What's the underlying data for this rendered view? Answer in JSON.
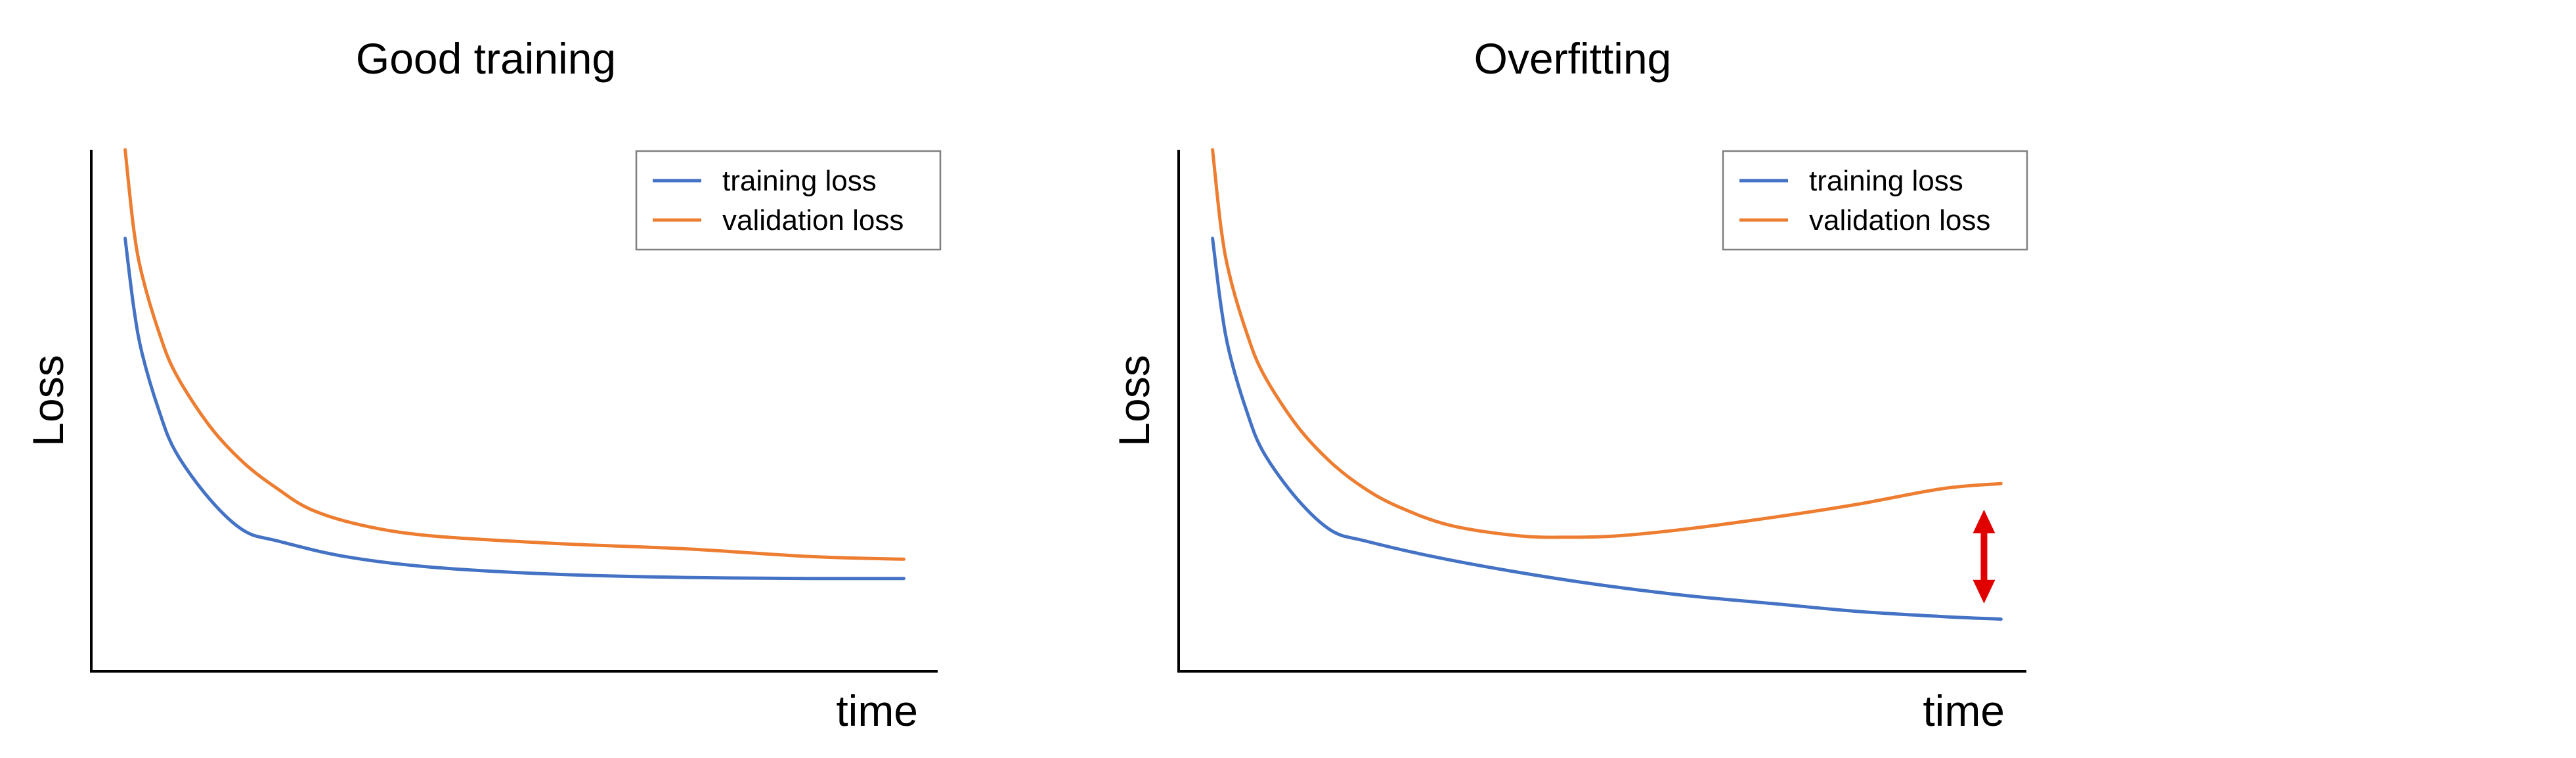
{
  "colors": {
    "training": "#4472C4",
    "validation": "#ED7D31",
    "gap_arrow": "#E00000",
    "axis": "#000000",
    "legend_border": "#7F7F7F"
  },
  "chart_data": [
    {
      "type": "line",
      "title": "Good training",
      "xlabel": "time",
      "ylabel": "Loss",
      "axis_ticks": false,
      "grid": false,
      "legend_position": "top-right",
      "xlim": [
        0,
        100
      ],
      "ylim": [
        0,
        100
      ],
      "series": [
        {
          "name": "training loss",
          "color_key": "training",
          "points": [
            [
              4,
              83
            ],
            [
              5,
              70
            ],
            [
              6,
              61
            ],
            [
              8,
              50
            ],
            [
              10,
              42
            ],
            [
              14,
              33
            ],
            [
              18,
              27
            ],
            [
              22,
              25
            ],
            [
              30,
              22
            ],
            [
              40,
              20
            ],
            [
              55,
              18.6
            ],
            [
              70,
              18
            ],
            [
              85,
              17.8
            ],
            [
              96,
              17.8
            ]
          ]
        },
        {
          "name": "validation loss",
          "color_key": "validation",
          "points": [
            [
              4,
              100
            ],
            [
              5,
              85
            ],
            [
              6,
              76
            ],
            [
              8,
              65
            ],
            [
              10,
              57
            ],
            [
              14,
              47
            ],
            [
              18,
              40
            ],
            [
              22,
              35
            ],
            [
              26,
              31
            ],
            [
              32,
              28
            ],
            [
              40,
              26
            ],
            [
              55,
              24.5
            ],
            [
              70,
              23.5
            ],
            [
              85,
              22
            ],
            [
              96,
              21.5
            ]
          ]
        }
      ]
    },
    {
      "type": "line",
      "title": "Overfitting",
      "xlabel": "time",
      "ylabel": "Loss",
      "axis_ticks": false,
      "grid": false,
      "legend_position": "top-right",
      "xlim": [
        0,
        100
      ],
      "ylim": [
        0,
        100
      ],
      "annotation": {
        "type": "double-arrow",
        "color_key": "gap_arrow",
        "x": 95,
        "y_from": 13,
        "y_to": 31
      },
      "series": [
        {
          "name": "training loss",
          "color_key": "training",
          "points": [
            [
              4,
              83
            ],
            [
              5,
              70
            ],
            [
              6,
              61
            ],
            [
              8,
              50
            ],
            [
              10,
              42
            ],
            [
              14,
              33
            ],
            [
              18,
              27
            ],
            [
              22,
              25
            ],
            [
              30,
              22
            ],
            [
              40,
              19
            ],
            [
              50,
              16.5
            ],
            [
              60,
              14.5
            ],
            [
              70,
              13
            ],
            [
              80,
              11.5
            ],
            [
              90,
              10.5
            ],
            [
              97,
              10
            ]
          ]
        },
        {
          "name": "validation loss",
          "color_key": "validation",
          "points": [
            [
              4,
              100
            ],
            [
              5,
              85
            ],
            [
              6,
              76
            ],
            [
              8,
              65
            ],
            [
              10,
              57
            ],
            [
              14,
              47
            ],
            [
              18,
              40
            ],
            [
              22,
              35
            ],
            [
              26,
              31.5
            ],
            [
              32,
              28
            ],
            [
              40,
              26
            ],
            [
              46,
              25.7
            ],
            [
              52,
              26
            ],
            [
              60,
              27.3
            ],
            [
              70,
              29.5
            ],
            [
              80,
              32
            ],
            [
              90,
              35
            ],
            [
              97,
              36
            ]
          ]
        }
      ]
    }
  ]
}
